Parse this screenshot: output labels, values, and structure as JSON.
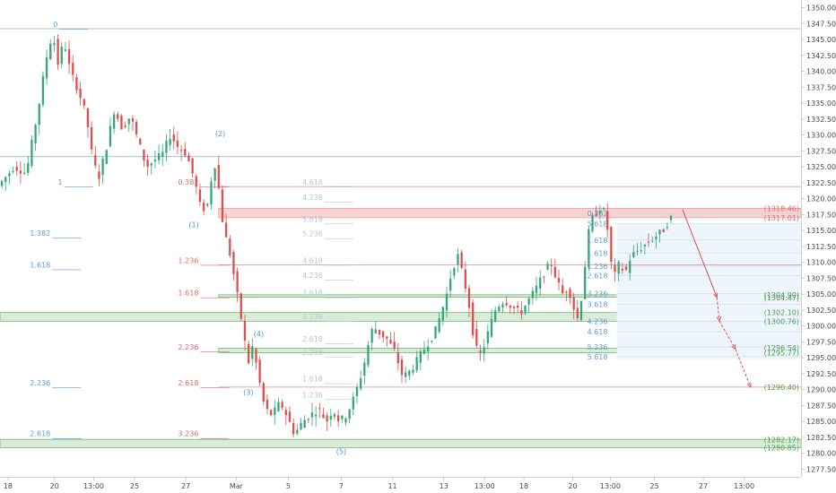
{
  "colors": {
    "up": "#35a776",
    "down": "#e04d4d",
    "blue_line": "#7fa6c9",
    "red_line": "#e58a8a",
    "green_line": "#4c9c4c",
    "green_zone": "#d9ecd9",
    "red_zone": "#f6d2d2",
    "blue_zone": "#eef5fc",
    "blue_fib": "#5b9bd5",
    "red_fib": "#e06a6a",
    "grey_fib": "#b3c7d8",
    "wave": "#4c8ed9"
  },
  "chart_data": {
    "type": "candlestick",
    "instrument_quote": "price",
    "ylim": [
      1276.3,
      1351.2
    ],
    "y_ticks": [
      1277.5,
      1280.0,
      1282.5,
      1285.0,
      1287.5,
      1290.0,
      1292.5,
      1295.0,
      1297.5,
      1300.0,
      1302.5,
      1305.0,
      1307.5,
      1310.0,
      1312.5,
      1315.0,
      1317.5,
      1320.0,
      1322.5,
      1325.0,
      1327.5,
      1330.0,
      1332.5,
      1335.0,
      1337.5,
      1340.0,
      1342.5,
      1345.0,
      1347.5,
      1350.0
    ],
    "y_tick_labels": [
      "1277.50",
      "1280.00",
      "1282.50",
      "1285.00",
      "1287.50",
      "1290.00",
      "1292.50",
      "1295.00",
      "1297.50",
      "1300.00",
      "1302.50",
      "1305.00",
      "1307.50",
      "1310.00",
      "1312.50",
      "1315.00",
      "1317.50",
      "1320.00",
      "1322.50",
      "1325.00",
      "1327.50",
      "1330.00",
      "1332.50",
      "1335.00",
      "1337.50",
      "1340.00",
      "1342.50",
      "1345.00",
      "1347.50",
      "1350.00"
    ],
    "x_labels": [
      {
        "label": "18",
        "x": 0.01
      },
      {
        "label": "20",
        "x": 0.068
      },
      {
        "label": "13:00",
        "x": 0.117
      },
      {
        "label": "25",
        "x": 0.168
      },
      {
        "label": "27",
        "x": 0.232
      },
      {
        "label": "Mar",
        "x": 0.295
      },
      {
        "label": "5",
        "x": 0.36
      },
      {
        "label": "7",
        "x": 0.426
      },
      {
        "label": "11",
        "x": 0.49
      },
      {
        "label": "13",
        "x": 0.554
      },
      {
        "label": "13:00",
        "x": 0.605
      },
      {
        "label": "18",
        "x": 0.654
      },
      {
        "label": "20",
        "x": 0.715
      },
      {
        "label": "13:00",
        "x": 0.762
      },
      {
        "label": "25",
        "x": 0.817
      },
      {
        "label": "27",
        "x": 0.878
      },
      {
        "label": "13:00",
        "x": 0.929
      }
    ],
    "price_path": [
      [
        0,
        1322
      ],
      [
        0.02,
        1325
      ],
      [
        0.035,
        1324
      ],
      [
        0.05,
        1334
      ],
      [
        0.06,
        1342
      ],
      [
        0.068,
        1346
      ],
      [
        0.075,
        1341
      ],
      [
        0.082,
        1345
      ],
      [
        0.09,
        1340
      ],
      [
        0.1,
        1337
      ],
      [
        0.11,
        1333
      ],
      [
        0.117,
        1327
      ],
      [
        0.125,
        1323
      ],
      [
        0.135,
        1328
      ],
      [
        0.145,
        1334
      ],
      [
        0.155,
        1331
      ],
      [
        0.165,
        1333
      ],
      [
        0.175,
        1329
      ],
      [
        0.185,
        1325
      ],
      [
        0.195,
        1326
      ],
      [
        0.205,
        1327
      ],
      [
        0.215,
        1330
      ],
      [
        0.225,
        1328
      ],
      [
        0.235,
        1327
      ],
      [
        0.245,
        1323
      ],
      [
        0.252,
        1319
      ],
      [
        0.26,
        1318
      ],
      [
        0.266,
        1323
      ],
      [
        0.272,
        1326
      ],
      [
        0.278,
        1318
      ],
      [
        0.284,
        1314
      ],
      [
        0.29,
        1311
      ],
      [
        0.297,
        1306
      ],
      [
        0.305,
        1300
      ],
      [
        0.312,
        1294
      ],
      [
        0.318,
        1297
      ],
      [
        0.325,
        1292
      ],
      [
        0.333,
        1287
      ],
      [
        0.342,
        1286
      ],
      [
        0.352,
        1288
      ],
      [
        0.36,
        1286
      ],
      [
        0.37,
        1283
      ],
      [
        0.38,
        1285
      ],
      [
        0.39,
        1286
      ],
      [
        0.4,
        1287
      ],
      [
        0.41,
        1285
      ],
      [
        0.418,
        1287
      ],
      [
        0.426,
        1285
      ],
      [
        0.435,
        1286
      ],
      [
        0.445,
        1289
      ],
      [
        0.455,
        1293
      ],
      [
        0.462,
        1297
      ],
      [
        0.468,
        1300
      ],
      [
        0.475,
        1299
      ],
      [
        0.485,
        1298
      ],
      [
        0.495,
        1296
      ],
      [
        0.505,
        1292
      ],
      [
        0.515,
        1293
      ],
      [
        0.525,
        1295
      ],
      [
        0.535,
        1297
      ],
      [
        0.545,
        1299
      ],
      [
        0.553,
        1302
      ],
      [
        0.56,
        1305
      ],
      [
        0.567,
        1309
      ],
      [
        0.574,
        1311
      ],
      [
        0.58,
        1308
      ],
      [
        0.587,
        1304
      ],
      [
        0.594,
        1298
      ],
      [
        0.6,
        1295
      ],
      [
        0.607,
        1297
      ],
      [
        0.614,
        1300
      ],
      [
        0.622,
        1303
      ],
      [
        0.632,
        1304
      ],
      [
        0.642,
        1303
      ],
      [
        0.652,
        1302
      ],
      [
        0.662,
        1304
      ],
      [
        0.672,
        1306
      ],
      [
        0.68,
        1308
      ],
      [
        0.69,
        1310
      ],
      [
        0.698,
        1307
      ],
      [
        0.705,
        1305
      ],
      [
        0.712,
        1306
      ],
      [
        0.718,
        1303
      ],
      [
        0.724,
        1301
      ],
      [
        0.73,
        1306
      ],
      [
        0.736,
        1314
      ],
      [
        0.742,
        1317
      ],
      [
        0.748,
        1318
      ],
      [
        0.754,
        1319
      ],
      [
        0.76,
        1316
      ],
      [
        0.765,
        1310
      ],
      [
        0.77,
        1308
      ],
      [
        0.776,
        1310
      ],
      [
        0.782,
        1308
      ],
      [
        0.79,
        1311
      ],
      [
        0.8,
        1312
      ],
      [
        0.81,
        1313
      ],
      [
        0.82,
        1314
      ],
      [
        0.83,
        1315
      ],
      [
        0.84,
        1317
      ]
    ],
    "horizontal_lines": [
      {
        "y": 1346.7,
        "color": "blue",
        "x0": 0,
        "x1": 1
      },
      {
        "y": 1326.6,
        "color": "blue",
        "x0": 0,
        "x1": 1
      },
      {
        "y": 1321.9,
        "color": "red",
        "x0": 0.273,
        "x1": 1
      },
      {
        "y": 1309.6,
        "color": "red",
        "x0": 0.273,
        "x1": 1
      },
      {
        "y": 1290.4,
        "color": "red",
        "x0": 0.273,
        "x1": 1
      }
    ],
    "fib_labels": [
      {
        "text": "0",
        "y": 1346.7,
        "x": 0.072,
        "color": "blue"
      },
      {
        "text": "1",
        "y": 1321.9,
        "x": 0.078,
        "color": "blue"
      },
      {
        "text": "1.382",
        "y": 1313.9,
        "x": 0.063,
        "color": "blue"
      },
      {
        "text": "1.618",
        "y": 1308.9,
        "x": 0.063,
        "color": "blue"
      },
      {
        "text": "2.236",
        "y": 1290.4,
        "x": 0.063,
        "color": "blue"
      },
      {
        "text": "2.618",
        "y": 1282.4,
        "x": 0.063,
        "color": "blue"
      },
      {
        "text": "0.382",
        "y": 1321.9,
        "x": 0.248,
        "color": "red"
      },
      {
        "text": "1.236",
        "y": 1309.6,
        "x": 0.248,
        "color": "red"
      },
      {
        "text": "1.618",
        "y": 1304.5,
        "x": 0.248,
        "color": "red"
      },
      {
        "text": "2.236",
        "y": 1296.0,
        "x": 0.248,
        "color": "red"
      },
      {
        "text": "2.618",
        "y": 1290.4,
        "x": 0.248,
        "color": "red"
      },
      {
        "text": "3.236",
        "y": 1282.4,
        "x": 0.248,
        "color": "red"
      },
      {
        "text": "4.618",
        "y": 1321.9,
        "x": 0.403,
        "color": "grey"
      },
      {
        "text": "4.236",
        "y": 1319.5,
        "x": 0.403,
        "color": "grey"
      },
      {
        "text": "5.618",
        "y": 1316.1,
        "x": 0.403,
        "color": "grey"
      },
      {
        "text": "5.236",
        "y": 1313.8,
        "x": 0.403,
        "color": "grey"
      },
      {
        "text": "4.618",
        "y": 1309.6,
        "x": 0.403,
        "color": "grey"
      },
      {
        "text": "4.236",
        "y": 1307.3,
        "x": 0.403,
        "color": "grey"
      },
      {
        "text": "3.618",
        "y": 1304.5,
        "x": 0.403,
        "color": "grey"
      },
      {
        "text": "3.236",
        "y": 1300.8,
        "x": 0.403,
        "color": "grey"
      },
      {
        "text": "2.618",
        "y": 1297.3,
        "x": 0.403,
        "color": "grey"
      },
      {
        "text": "2.236",
        "y": 1295.2,
        "x": 0.403,
        "color": "grey"
      },
      {
        "text": "1.618",
        "y": 1291.0,
        "x": 0.403,
        "color": "grey"
      },
      {
        "text": "1.236",
        "y": 1288.5,
        "x": 0.403,
        "color": "grey"
      }
    ],
    "right_fib_labels": [
      {
        "text": "0.382",
        "y": 1317.7
      },
      {
        "text": "5.618",
        "y": 1316.1
      },
      {
        "text": "1.618",
        "y": 1313.5
      },
      {
        "text": "1.618",
        "y": 1311.4
      },
      {
        "text": "2.618",
        "y": 1307.9
      },
      {
        "text": "1.236",
        "y": 1309.4
      },
      {
        "text": "3.236",
        "y": 1305.1
      },
      {
        "text": "3.618",
        "y": 1303.4
      },
      {
        "text": "4.236",
        "y": 1300.7
      },
      {
        "text": "4.618",
        "y": 1299.1
      },
      {
        "text": "5.236",
        "y": 1296.7
      },
      {
        "text": "5.618",
        "y": 1295.2
      }
    ],
    "wave_labels": [
      {
        "text": "(2)",
        "y": 1329.8,
        "x": 0.275
      },
      {
        "text": "(1)",
        "y": 1315.5,
        "x": 0.242
      },
      {
        "text": "(4)",
        "y": 1298.3,
        "x": 0.323
      },
      {
        "text": "(3)",
        "y": 1289.2,
        "x": 0.31
      },
      {
        "text": "(5)",
        "y": 1279.9,
        "x": 0.426
      }
    ],
    "zones": [
      {
        "y0": 1317.0,
        "y1": 1318.5,
        "color": "red",
        "x0": 0.273,
        "x1": 1
      },
      {
        "y0": 1304.5,
        "y1": 1304.9,
        "color": "green",
        "x0": 0.273,
        "x1": 1
      },
      {
        "y0": 1300.76,
        "y1": 1302.1,
        "color": "green",
        "x0": 0,
        "x1": 1
      },
      {
        "y0": 1295.8,
        "y1": 1296.5,
        "color": "green",
        "x0": 0.273,
        "x1": 1
      },
      {
        "y0": 1280.9,
        "y1": 1282.2,
        "color": "green",
        "x0": 0,
        "x1": 1
      }
    ],
    "box_labels": [
      {
        "text": "(1318.46)",
        "y": 1318.46,
        "color": "red"
      },
      {
        "text": "(1317.01)",
        "y": 1317.01,
        "color": "red"
      },
      {
        "text": "(1304.90)",
        "y": 1304.9,
        "color": "green"
      },
      {
        "text": "(1304.47)",
        "y": 1304.47,
        "color": "green"
      },
      {
        "text": "(1302.10)",
        "y": 1302.1,
        "color": "green"
      },
      {
        "text": "(1300.76)",
        "y": 1300.76,
        "color": "green"
      },
      {
        "text": "(1296.54)",
        "y": 1296.54,
        "color": "green"
      },
      {
        "text": "(1295.77)",
        "y": 1295.77,
        "color": "green"
      },
      {
        "text": "(1290.40)",
        "y": 1290.4,
        "color": "green"
      },
      {
        "text": "(1282.17)",
        "y": 1282.17,
        "color": "green"
      },
      {
        "text": "(1280.85)",
        "y": 1280.85,
        "color": "green"
      }
    ],
    "projection": [
      [
        0.852,
        1318.3
      ],
      [
        0.895,
        1304.5
      ],
      [
        0.898,
        1300.8
      ],
      [
        0.918,
        1296.4
      ],
      [
        0.937,
        1290.4
      ]
    ]
  }
}
